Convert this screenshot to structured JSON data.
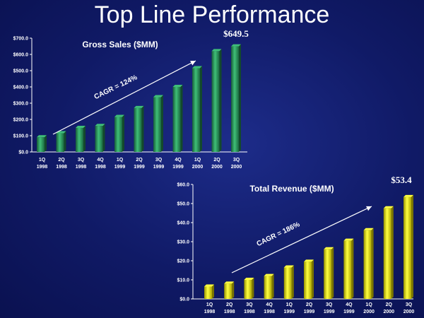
{
  "page": {
    "title": "Top Line Performance"
  },
  "chart_data": [
    {
      "type": "bar",
      "title": "Gross Sales ($MM)",
      "xlabel": "",
      "ylabel": "",
      "categories": [
        "1Q 1998",
        "2Q 1998",
        "3Q 1998",
        "4Q 1998",
        "1Q 1999",
        "2Q 1999",
        "3Q 1999",
        "4Q 1999",
        "1Q 2000",
        "2Q 2000",
        "3Q 2000"
      ],
      "category_lines": [
        [
          "1Q",
          "1998"
        ],
        [
          "2Q",
          "1998"
        ],
        [
          "3Q",
          "1998"
        ],
        [
          "4Q",
          "1998"
        ],
        [
          "1Q",
          "1999"
        ],
        [
          "2Q",
          "1999"
        ],
        [
          "3Q",
          "1999"
        ],
        [
          "4Q",
          "1999"
        ],
        [
          "1Q",
          "2000"
        ],
        [
          "2Q",
          "2000"
        ],
        [
          "3Q",
          "2000"
        ]
      ],
      "values": [
        90,
        115,
        148,
        160,
        215,
        270,
        337,
        400,
        515,
        620,
        649.5
      ],
      "ylim": [
        0,
        700
      ],
      "ytick_labels": [
        "$0.0",
        "$100.0",
        "$200.0",
        "$300.0",
        "$400.0",
        "$500.0",
        "$600.0",
        "$700.0"
      ],
      "ytick_values": [
        0,
        100,
        200,
        300,
        400,
        500,
        600,
        700
      ],
      "annotation_trend": "CAGR = 124%",
      "callout": "$649.5",
      "bar_color": "#1f7a4a",
      "bar_highlight": "#3fbf78",
      "grid": false
    },
    {
      "type": "bar",
      "title": "Total Revenue ($MM)",
      "xlabel": "",
      "ylabel": "",
      "categories": [
        "1Q 1998",
        "2Q 1998",
        "3Q 1998",
        "4Q 1998",
        "1Q 1999",
        "2Q 1999",
        "3Q 1999",
        "4Q 1999",
        "1Q 2000",
        "2Q 2000",
        "3Q 2000"
      ],
      "category_lines": [
        [
          "1Q",
          "1998"
        ],
        [
          "2Q",
          "1998"
        ],
        [
          "3Q",
          "1998"
        ],
        [
          "4Q",
          "1998"
        ],
        [
          "1Q",
          "1999"
        ],
        [
          "2Q",
          "1999"
        ],
        [
          "3Q",
          "1999"
        ],
        [
          "4Q",
          "1999"
        ],
        [
          "1Q",
          "2000"
        ],
        [
          "2Q",
          "2000"
        ],
        [
          "3Q",
          "2000"
        ]
      ],
      "values": [
        6.5,
        8,
        10,
        12,
        16.5,
        19.5,
        26,
        30.5,
        36,
        47.5,
        53.4
      ],
      "ylim": [
        0,
        60
      ],
      "ytick_labels": [
        "$0.0",
        "$10.0",
        "$20.0",
        "$30.0",
        "$40.0",
        "$50.0",
        "$60.0"
      ],
      "ytick_values": [
        0,
        10,
        20,
        30,
        40,
        50,
        60
      ],
      "annotation_trend": "CAGR = 186%",
      "callout": "$53.4",
      "bar_color": "#c9c200",
      "bar_highlight": "#ffff40",
      "grid": false
    }
  ]
}
